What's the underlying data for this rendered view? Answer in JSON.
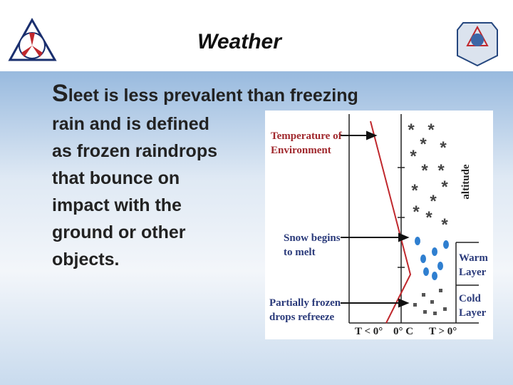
{
  "header": {
    "title": "Weather"
  },
  "body": {
    "lines": [
      "Sleet is less prevalent than freezing",
      "rain and is defined",
      "as frozen raindrops",
      "that bounce on",
      "impact with the",
      "ground or other",
      "objects."
    ]
  },
  "diagram": {
    "temperature_label": [
      "Temperature of",
      "Environment"
    ],
    "snow_label": [
      "Snow begins",
      "to melt"
    ],
    "refreeze_label": [
      "Partially frozen",
      "drops refreeze"
    ],
    "warm_label": [
      "Warm",
      "Layer"
    ],
    "cold_label": [
      "Cold",
      "Layer"
    ],
    "axis_label": "altitude",
    "x_labels": [
      "T < 0°",
      "0° C",
      "T > 0°"
    ]
  }
}
